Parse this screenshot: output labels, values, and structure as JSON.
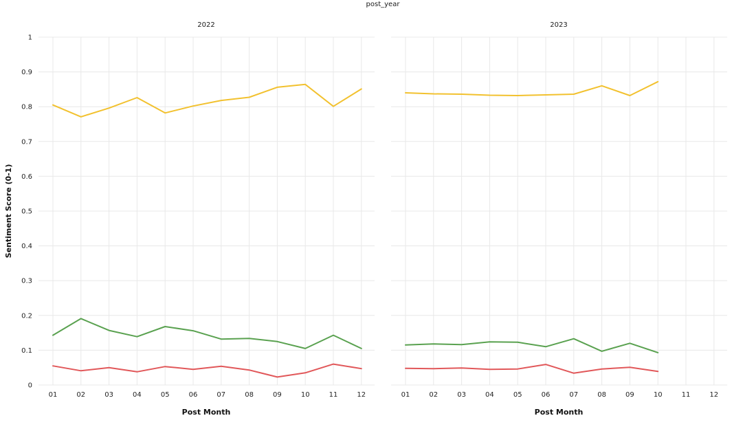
{
  "chart_data": {
    "type": "line",
    "facet_title": "post_year",
    "facet_field": "post_year",
    "facets": [
      "2022",
      "2023"
    ],
    "xlabel": "Post Month",
    "ylabel": "Sentiment Score (0-1)",
    "ylim": [
      0,
      1
    ],
    "y_ticks": [
      "0",
      "0.1",
      "0.2",
      "0.3",
      "0.4",
      "0.5",
      "0.6",
      "0.7",
      "0.8",
      "0.9",
      "1"
    ],
    "categories": [
      "01",
      "02",
      "03",
      "04",
      "05",
      "06",
      "07",
      "08",
      "09",
      "10",
      "11",
      "12"
    ],
    "grid": true,
    "legend": "none",
    "panels": [
      {
        "facet": "2022",
        "series": [
          {
            "color": "#f2c12e",
            "values": [
              0.805,
              0.771,
              0.796,
              0.826,
              0.782,
              0.802,
              0.818,
              0.827,
              0.856,
              0.864,
              0.801,
              0.851
            ]
          },
          {
            "color": "#59a14f",
            "values": [
              0.143,
              0.191,
              0.157,
              0.139,
              0.168,
              0.156,
              0.132,
              0.134,
              0.125,
              0.105,
              0.143,
              0.105
            ]
          },
          {
            "color": "#e15759",
            "values": [
              0.055,
              0.041,
              0.05,
              0.038,
              0.053,
              0.045,
              0.054,
              0.043,
              0.023,
              0.035,
              0.06,
              0.047
            ]
          }
        ]
      },
      {
        "facet": "2023",
        "series": [
          {
            "color": "#f2c12e",
            "values": [
              0.84,
              0.837,
              0.836,
              0.833,
              0.832,
              0.834,
              0.836,
              0.86,
              0.832,
              0.872
            ]
          },
          {
            "color": "#59a14f",
            "values": [
              0.115,
              0.118,
              0.116,
              0.124,
              0.123,
              0.11,
              0.133,
              0.097,
              0.12,
              0.093
            ]
          },
          {
            "color": "#e15759",
            "values": [
              0.048,
              0.047,
              0.049,
              0.045,
              0.046,
              0.059,
              0.034,
              0.046,
              0.051,
              0.039
            ]
          }
        ]
      }
    ]
  }
}
